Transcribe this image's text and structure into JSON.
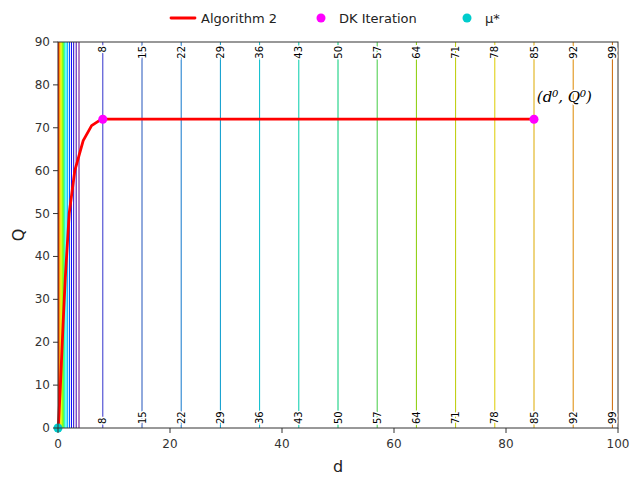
{
  "chart_data": {
    "type": "line",
    "xlabel": "d",
    "ylabel": "Q",
    "xlim": [
      0,
      100
    ],
    "ylim": [
      0,
      90
    ],
    "xticks": [
      0,
      20,
      40,
      60,
      80,
      100
    ],
    "yticks": [
      0,
      10,
      20,
      30,
      40,
      50,
      60,
      70,
      80,
      90
    ],
    "legend": "top",
    "labeled_lines": {
      "x": [
        8,
        15,
        22,
        29,
        36,
        43,
        50,
        57,
        64,
        71,
        78,
        85,
        92,
        99
      ],
      "colors": [
        "#3333cc",
        "#2255bb",
        "#1177cc",
        "#0099cc",
        "#00bbcc",
        "#00ccaa",
        "#00cc77",
        "#44cc44",
        "#88cc00",
        "#bbcc00",
        "#ddcc00",
        "#ddaa00",
        "#dd8800",
        "#cc6600"
      ]
    },
    "dense_lines": {
      "x": [
        0.08,
        0.15,
        0.22,
        0.3,
        0.4,
        0.52,
        0.66,
        0.82,
        1.0,
        1.2,
        1.45,
        1.72,
        2.05,
        2.4,
        2.8,
        3.25,
        3.75
      ],
      "colors": [
        "#ff0000",
        "#ff2200",
        "#ff5500",
        "#ff8800",
        "#ffbb00",
        "#ffee00",
        "#ccff00",
        "#88ff00",
        "#44ff44",
        "#00ffaa",
        "#00eeff",
        "#00aaff",
        "#0055ff",
        "#0000ff",
        "#2200cc",
        "#4400aa",
        "#660088"
      ]
    },
    "series": [
      {
        "name": "Algorithm 2",
        "type": "line",
        "color": "#ff0000",
        "x": [
          0,
          0.1,
          0.2,
          0.4,
          0.6,
          0.9,
          1.3,
          2.0,
          3.0,
          4.5,
          6.0,
          7.5,
          8.5,
          10,
          20,
          40,
          85
        ],
        "values": [
          0,
          1.5,
          4,
          9,
          15,
          24,
          35,
          50,
          60,
          67,
          70.5,
          71.8,
          72.0,
          72.0,
          72.0,
          72.0,
          72.0
        ]
      },
      {
        "name": "DK Iteration",
        "type": "scatter",
        "marker": "circle",
        "color": "#ff00ff",
        "x": [
          8.0,
          85.0
        ],
        "values": [
          72.0,
          72.0
        ]
      },
      {
        "name": "μ*",
        "type": "scatter",
        "marker": "circle",
        "color": "#00cccc",
        "x": [
          0.0
        ],
        "values": [
          0.0
        ]
      }
    ],
    "annotations": [
      {
        "text": "(d⁰, Q⁰)",
        "x": 85.5,
        "y": 76
      }
    ]
  }
}
